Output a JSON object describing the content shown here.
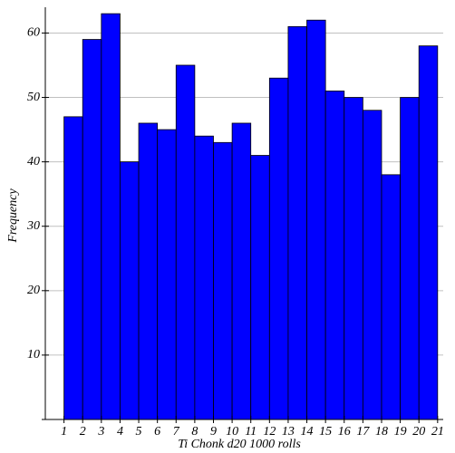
{
  "chart_data": {
    "type": "histogram",
    "xlabel": "Ti Chonk d20 1000 rolls",
    "ylabel": "Frequency",
    "bins": [
      1,
      2,
      3,
      4,
      5,
      6,
      7,
      8,
      9,
      10,
      11,
      12,
      13,
      14,
      15,
      16,
      17,
      18,
      19,
      20,
      21
    ],
    "counts": [
      47,
      59,
      63,
      40,
      46,
      45,
      55,
      44,
      43,
      46,
      41,
      53,
      61,
      62,
      51,
      50,
      48,
      38,
      50,
      58
    ],
    "color": "#0000ff",
    "xlim": [
      0,
      21.3
    ],
    "xticks": [
      1,
      2,
      3,
      4,
      5,
      6,
      7,
      8,
      9,
      10,
      11,
      12,
      13,
      14,
      15,
      16,
      17,
      18,
      19,
      20,
      21
    ],
    "ylim": [
      0,
      64
    ],
    "yticks": [
      10,
      20,
      30,
      40,
      50,
      60
    ],
    "grid": true
  }
}
